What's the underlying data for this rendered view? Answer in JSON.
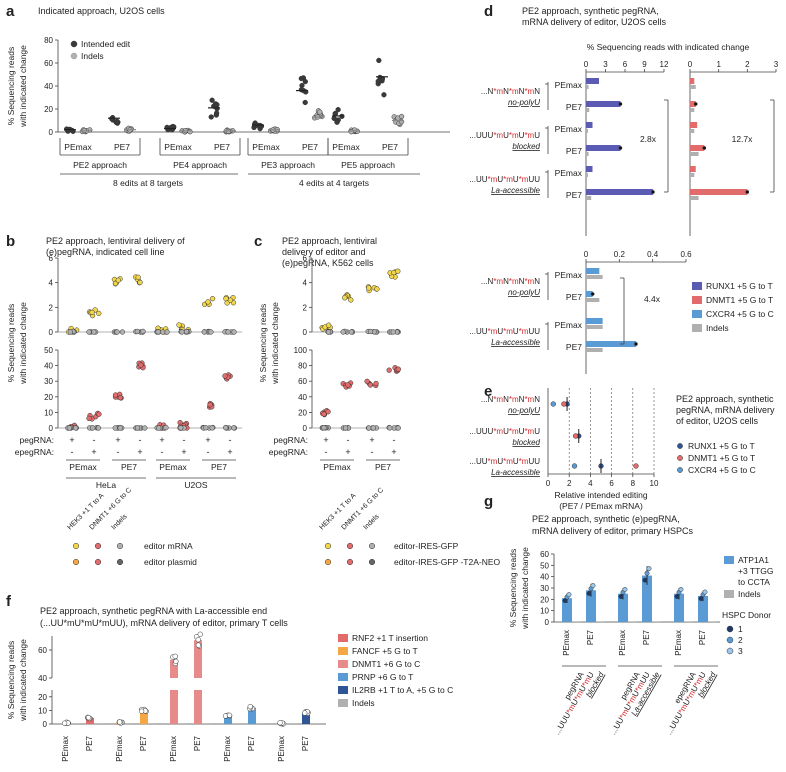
{
  "panels": {
    "a": {
      "letter": "a",
      "title": "Indicated approach, U2OS cells"
    },
    "b": {
      "letter": "b",
      "title_line1": "PE2 approach, lentiviral delivery of",
      "title_line2": "(e)pegRNA, indicated cell line"
    },
    "c": {
      "letter": "c",
      "title_line1": "PE2 approach, lentiviral",
      "title_line2": "delivery of editor and",
      "title_line3": "(e)pegRNA, K562 cells"
    },
    "d": {
      "letter": "d",
      "title_line1": "PE2 approach, synthetic pegRNA,",
      "title_line2": "mRNA delivery of editor, U2OS cells",
      "axis_title": "% Sequencing reads with indicated change"
    },
    "e": {
      "letter": "e",
      "title_line1": "PE2 approach, synthetic",
      "title_line2": "pegRNA, mRNA delivery",
      "title_line3": "of editor, U2OS cells"
    },
    "f": {
      "letter": "f",
      "title_line1": "PE2 approach, synthetic pegRNA with La-accessible end",
      "title_line2": "(...UU*mU*mU*mUU), mRNA delivery of editor, primary T cells"
    },
    "g": {
      "letter": "g",
      "title_line1": "PE2 approach, synthetic (e)pegRNA,",
      "title_line2": "mRNA delivery of editor, primary HSPCs"
    }
  },
  "ylabels": {
    "reads": "% Sequencing reads",
    "change": "with indicated change"
  },
  "colors": {
    "blue_dark": "#5b5bb3",
    "red": "#e26b6b",
    "blue": "#5b9bd5",
    "grey": "#b0b0b0",
    "orange": "#f4a742",
    "navy": "#2f5597",
    "yellow": "#f2d64b",
    "dot_dark": "#3a3a3a"
  },
  "chart_data": [
    {
      "panel": "a",
      "type": "scatter",
      "ylabel": "% Sequencing reads with indicated change",
      "ylim": [
        0,
        80
      ],
      "yticks": [
        0,
        20,
        40,
        60,
        80
      ],
      "legend": [
        "Intended edit",
        "Indels"
      ],
      "groups": [
        {
          "approach": "PE2 approach",
          "editors": [
            "PEmax",
            "PE7"
          ],
          "intended": [
            2,
            12
          ],
          "indels": [
            1,
            2
          ]
        },
        {
          "approach": "PE4 approach",
          "editors": [
            "PEmax",
            "PE7"
          ],
          "intended": [
            3,
            21
          ],
          "indels": [
            1,
            1
          ]
        },
        {
          "approach": "PE3 approach",
          "editors": [
            "PEmax",
            "PE7"
          ],
          "intended": [
            6,
            36
          ],
          "indels": [
            2,
            13
          ]
        },
        {
          "approach": "PE5 approach",
          "editors": [
            "PEmax",
            "PE7"
          ],
          "intended": [
            14,
            48
          ],
          "indels": [
            1,
            10
          ]
        }
      ],
      "footer_left": "8 edits at 8 targets",
      "footer_right": "4 edits at 4 targets"
    },
    {
      "panel": "b",
      "type": "scatter",
      "top_yticks": [
        0,
        2,
        4,
        6
      ],
      "bottom_yticks": [
        0,
        10,
        20,
        30,
        40,
        50
      ],
      "row_labels": [
        "pegRNA:",
        "epegRNA:"
      ],
      "conditions": [
        {
          "cell": "HeLa",
          "editor": "PEmax",
          "peg": "+",
          "epeg": "-",
          "hek3": 0.1,
          "dnmt1": 0.4,
          "indels": 0
        },
        {
          "cell": "HeLa",
          "editor": "PEmax",
          "peg": "-",
          "epeg": "+",
          "hek3": 1.6,
          "dnmt1": 7.5,
          "indels": 0
        },
        {
          "cell": "HeLa",
          "editor": "PE7",
          "peg": "+",
          "epeg": "-",
          "hek3": 4.2,
          "dnmt1": 20,
          "indels": 0
        },
        {
          "cell": "HeLa",
          "editor": "PE7",
          "peg": "-",
          "epeg": "+",
          "hek3": 4.3,
          "dnmt1": 40,
          "indels": 0
        },
        {
          "cell": "U2OS",
          "editor": "PEmax",
          "peg": "+",
          "epeg": "-",
          "hek3": 0.1,
          "dnmt1": 0.3,
          "indels": 0
        },
        {
          "cell": "U2OS",
          "editor": "PEmax",
          "peg": "-",
          "epeg": "+",
          "hek3": 0.3,
          "dnmt1": 1.5,
          "indels": 0
        },
        {
          "cell": "U2OS",
          "editor": "PE7",
          "peg": "+",
          "epeg": "-",
          "hek3": 2.5,
          "dnmt1": 14,
          "indels": 0
        },
        {
          "cell": "U2OS",
          "editor": "PE7",
          "peg": "-",
          "epeg": "+",
          "hek3": 2.6,
          "dnmt1": 33,
          "indels": 0
        }
      ],
      "legend_headers": [
        "HEK3 +1 T to A",
        "DNMT1 +6 G to C",
        "Indels"
      ],
      "legend_rows": [
        "editor mRNA",
        "editor plasmid"
      ]
    },
    {
      "panel": "c",
      "type": "scatter",
      "top_yticks": [
        0,
        2,
        4,
        6
      ],
      "bottom_yticks": [
        0,
        20,
        40,
        60,
        80,
        100
      ],
      "conditions": [
        {
          "editor": "PEmax",
          "peg": "+",
          "epeg": "-",
          "hek3": 0.4,
          "dnmt1": 20,
          "indels": 0
        },
        {
          "editor": "PEmax",
          "peg": "-",
          "epeg": "+",
          "hek3": 2.8,
          "dnmt1": 55,
          "indels": 0
        },
        {
          "editor": "PE7",
          "peg": "+",
          "epeg": "-",
          "hek3": 3.6,
          "dnmt1": 57,
          "indels": 0
        },
        {
          "editor": "PE7",
          "peg": "-",
          "epeg": "+",
          "hek3": 4.7,
          "dnmt1": 75,
          "indels": 0
        }
      ],
      "legend_rows": [
        "editor-IRES-GFP",
        "editor-IRES-GFP -T2A-NEO"
      ]
    },
    {
      "panel": "d",
      "type": "bar",
      "left_xticks": [
        0,
        3,
        6,
        9,
        12
      ],
      "right_xticks": [
        0,
        1,
        2,
        3
      ],
      "bottom_xticks": [
        0,
        0.2,
        0.4,
        0.6
      ],
      "pegrnas": [
        {
          "l1": "...N*mN*mN*mN",
          "l2": "no-polyU",
          "runx1": 2.0,
          "dnmt1": 0.15,
          "runx1_indel": 0.4,
          "dnmt1_indel": 0.2,
          "pe7_runx1": 5.3,
          "pe7_dnmt1": 0.2,
          "pe7_runx1_indel": 0.5,
          "pe7_dnmt1_indel": 0.15
        },
        {
          "l1": "...UUU*mU*mU*mU",
          "l2": "blocked",
          "runx1": 1.0,
          "dnmt1": 0.25,
          "runx1_indel": 0.3,
          "dnmt1_indel": 0.15,
          "pe7_runx1": 5.3,
          "pe7_dnmt1": 0.5,
          "pe7_runx1_indel": 0.4,
          "pe7_dnmt1_indel": 0.3
        },
        {
          "l1": "...UU*mU*mU*mUU",
          "l2": "La-accessible",
          "runx1": 1.0,
          "dnmt1": 0.2,
          "runx1_indel": 0.3,
          "dnmt1_indel": 0.15,
          "pe7_runx1": 10.3,
          "pe7_dnmt1": 2.0,
          "pe7_runx1_indel": 0.8,
          "pe7_dnmt1_indel": 0.3
        }
      ],
      "fold_runx1": "2.8x",
      "fold_dnmt1": "12.7x",
      "cxcr4": [
        {
          "l1": "...N*mN*mN*mN",
          "l2": "no-polyU",
          "pemax": 0.08,
          "pemax_indel": 0.1,
          "pe7": 0.04,
          "pe7_indel": 0.08
        },
        {
          "l1": "...UU*mU*mU*mUU",
          "l2": "La-accessible",
          "pemax": 0.1,
          "pemax_indel": 0.1,
          "pe7": 0.3,
          "pe7_indel": 0.1
        }
      ],
      "fold_cxcr4": "4.4x",
      "editor_labels": [
        "PEmax",
        "PE7"
      ],
      "legend": [
        "RUNX1 +5 G to T",
        "DNMT1 +5 G to T",
        "CXCR4 +5 G to C",
        "Indels"
      ]
    },
    {
      "panel": "e",
      "type": "scatter",
      "xlabel": "Relative intended editing (PE7 / PEmax mRNA)",
      "xlim": [
        0,
        10
      ],
      "xticks": [
        0,
        2,
        4,
        6,
        8,
        10
      ],
      "rows": [
        {
          "l1": "...N*mN*mN*mN",
          "l2": "no-polyU",
          "runx1": 1.8,
          "dnmt1": 1.5,
          "cxcr4": 0.5
        },
        {
          "l1": "...UUU*mU*mU*mU",
          "l2": "blocked",
          "runx1": 2.9,
          "dnmt1": 2.6,
          "cxcr4": null
        },
        {
          "l1": "...UU*mU*mU*mUU",
          "l2": "La-accessible",
          "runx1": 5.0,
          "dnmt1": 8.3,
          "cxcr4": 2.5
        }
      ],
      "legend": [
        "RUNX1 +5 G to T",
        "DNMT1 +5 G to T",
        "CXCR4 +5 G to C"
      ]
    },
    {
      "panel": "f",
      "type": "bar",
      "yticks_low": [
        0,
        10,
        20
      ],
      "yticks_high": [
        40,
        60
      ],
      "categories": [
        "PEmax",
        "PE7",
        "PEmax",
        "PE7",
        "PEmax",
        "PE7",
        "PEmax",
        "PE7",
        "PEmax",
        "PE7"
      ],
      "series": [
        {
          "name": "RNF2 +1 T insertion",
          "pemax": 1.0,
          "pe7": 4.5
        },
        {
          "name": "FANCF +5 G to T",
          "pemax": 1.0,
          "pe7": 10
        },
        {
          "name": "DNMT1 +6 G to C",
          "pemax": 53,
          "pe7": 67
        },
        {
          "name": "PRNP +6 G to T",
          "pemax": 6,
          "pe7": 12
        },
        {
          "name": "IL2RB +1 T to A, +5 G to C",
          "pemax": 0.5,
          "pe7": 8.5
        },
        {
          "name": "Indels",
          "pemax": 0.3,
          "pe7": 0.3
        }
      ]
    },
    {
      "panel": "g",
      "type": "bar",
      "ylim": [
        0,
        60
      ],
      "yticks": [
        0,
        10,
        20,
        30,
        40,
        50,
        60
      ],
      "groups": [
        {
          "l1": "pegRNA",
          "l2": "...UUU*mU*mU*mU",
          "l3": "blocked",
          "pemax": 21,
          "pe7": 28
        },
        {
          "l1": "pegRNA",
          "l2": "...UU*mU*mU*mUU",
          "l3": "La-accessible",
          "pemax": 25,
          "pe7": 41
        },
        {
          "l1": "epegRNA",
          "l2": "...UUU*mU*mU*mU",
          "l3": "blocked",
          "pemax": 25,
          "pe7": 23
        }
      ],
      "legend": [
        "ATP1A1 +3 TTGG to CCTA",
        "Indels"
      ],
      "donor_title": "HSPC Donor",
      "donors": [
        "1",
        "2",
        "3"
      ]
    }
  ]
}
